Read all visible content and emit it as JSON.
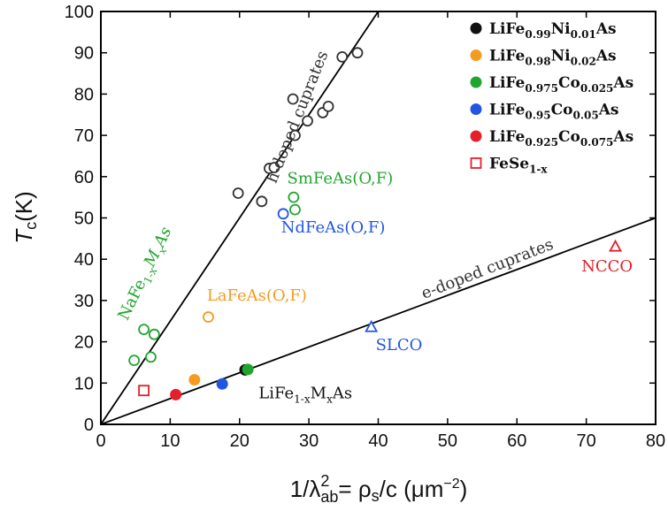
{
  "chart_data": {
    "type": "scatter",
    "title": "",
    "xlabel": "1/λ²ab = ρs/c  (μm⁻²)",
    "ylabel": "Tc(K)",
    "xlim": [
      0,
      80
    ],
    "ylim": [
      0,
      100
    ],
    "x_ticks": [
      0,
      10,
      20,
      30,
      40,
      50,
      60,
      70,
      80
    ],
    "y_ticks": [
      0,
      10,
      20,
      30,
      40,
      50,
      60,
      70,
      80,
      90,
      100
    ],
    "grid": false,
    "legend_position": "top-right",
    "lines": [
      {
        "label": "h-doped cuprates",
        "x": [
          0,
          40
        ],
        "y": [
          0,
          100
        ],
        "color": "#000000"
      },
      {
        "label": "e-doped cuprates",
        "x": [
          0,
          80
        ],
        "y": [
          0,
          50
        ],
        "color": "#000000"
      }
    ],
    "series": [
      {
        "name": "LiFe0.99Ni0.01As",
        "marker": "filled-circle",
        "color": "#111111",
        "x": [
          20.8
        ],
        "y": [
          13.2
        ]
      },
      {
        "name": "LiFe0.98Ni0.02As",
        "marker": "filled-circle",
        "color": "#f39c1f",
        "x": [
          13.5
        ],
        "y": [
          10.8
        ]
      },
      {
        "name": "LiFe0.975Co0.025As",
        "marker": "filled-circle",
        "color": "#22a52f",
        "x": [
          21.2
        ],
        "y": [
          13.3
        ]
      },
      {
        "name": "LiFe0.95Co0.05As",
        "marker": "filled-circle",
        "color": "#2455e0",
        "x": [
          17.5
        ],
        "y": [
          9.8
        ]
      },
      {
        "name": "LiFe0.925Co0.075As",
        "marker": "filled-circle",
        "color": "#e5202a",
        "x": [
          10.8
        ],
        "y": [
          7.2
        ]
      },
      {
        "name": "FeSe1-x",
        "marker": "open-square",
        "color": "#e5202a",
        "x": [
          6.2
        ],
        "y": [
          8.2
        ]
      },
      {
        "marker": "open-circle",
        "color": "#333333",
        "x": [
          19.8,
          23.2,
          24.3,
          25.0,
          27.7,
          28.0,
          29.8,
          32.0,
          32.8,
          34.8,
          37.0
        ],
        "y": [
          56.0,
          54.0,
          62.0,
          62.2,
          78.8,
          70.0,
          73.5,
          75.5,
          77.0,
          89.0,
          90.0
        ]
      },
      {
        "marker": "open-circle",
        "color": "#22a52f",
        "x": [
          4.8,
          6.2,
          7.2,
          7.7,
          27.8,
          28.0
        ],
        "y": [
          15.5,
          23.0,
          16.3,
          21.8,
          55.0,
          52.0
        ]
      },
      {
        "marker": "open-circle",
        "color": "#2455e0",
        "x": [
          26.3
        ],
        "y": [
          51.0
        ]
      },
      {
        "marker": "open-circle",
        "color": "#f39c1f",
        "x": [
          15.5
        ],
        "y": [
          26.0
        ]
      },
      {
        "marker": "open-triangle",
        "color": "#2455e0",
        "x": [
          39.0
        ],
        "y": [
          23.5
        ]
      },
      {
        "marker": "open-triangle",
        "color": "#e5202a",
        "x": [
          74.2
        ],
        "y": [
          43.0
        ]
      }
    ],
    "annotations": [
      {
        "id": "h-doped-cuprates-label",
        "text": "h-doped cuprates",
        "x": 29.0,
        "y": 74.0,
        "color": "#333333",
        "angle": -68.2
      },
      {
        "id": "e-doped-cuprates-label",
        "text": "e-doped cuprates",
        "x": 56.0,
        "y": 36.5,
        "color": "#333333",
        "angle": -21.2
      },
      {
        "id": "nafe-label",
        "text": "NaFe1-xMxAs",
        "x": 7.0,
        "y": 36.0,
        "color": "#22a52f",
        "angle": -64.0
      },
      {
        "id": "smfeas-label",
        "text": "SmFeAs(O,F)",
        "x": 34.5,
        "y": 58.3,
        "color": "#22a52f",
        "angle": 0
      },
      {
        "id": "ndfeas-label",
        "text": "NdFeAs(O,F)",
        "x": 33.5,
        "y": 46.5,
        "color": "#2455e0",
        "angle": 0
      },
      {
        "id": "lafeas-label",
        "text": "LaFeAs(O,F)",
        "x": 22.5,
        "y": 30.0,
        "color": "#f39c1f",
        "angle": 0
      },
      {
        "id": "slco-label",
        "text": "SLCO",
        "x": 43.0,
        "y": 18.0,
        "color": "#2455e0",
        "angle": 0
      },
      {
        "id": "ncco-label",
        "text": "NCCO",
        "x": 73.0,
        "y": 37.0,
        "color": "#e5202a",
        "angle": 0
      },
      {
        "id": "life-label",
        "text": "LiFe1-xMxAs",
        "x": 29.5,
        "y": 6.3,
        "color": "#111111",
        "angle": 0
      }
    ]
  }
}
